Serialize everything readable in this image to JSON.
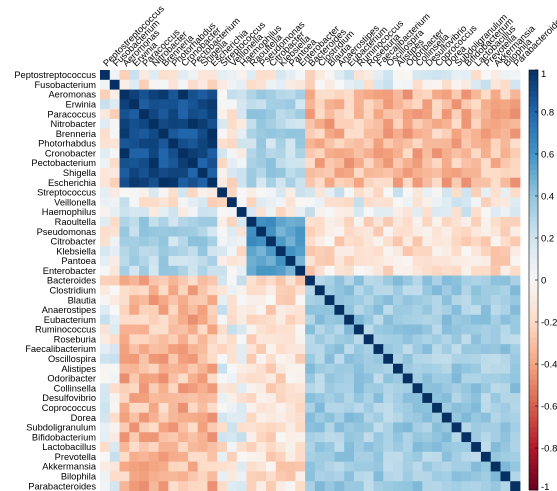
{
  "chart_data": {
    "type": "heatmap",
    "title": "",
    "labels": [
      "Peptostreptococcus",
      "Fusobacterium",
      "Aeromonas",
      "Erwinia",
      "Paracoccus",
      "Nitrobacter",
      "Brenneria",
      "Photorhabdus",
      "Cronobacter",
      "Pectobacterium",
      "Shigella",
      "Escherichia",
      "Streptococcus",
      "Veillonella",
      "Haemophilus",
      "Raoultella",
      "Pseudomonas",
      "Citrobacter",
      "Klebsiella",
      "Pantoea",
      "Enterobacter",
      "Bacteroides",
      "Clostridium",
      "Blautia",
      "Anaerostipes",
      "Eubacterium",
      "Ruminococcus",
      "Roseburia",
      "Faecalibacterium",
      "Oscillospira",
      "Alistipes",
      "Odoribacter",
      "Collinsella",
      "Desulfovibrio",
      "Coprococcus",
      "Dorea",
      "Subdoligranulum",
      "Bifidobacterium",
      "Lactobacillus",
      "Prevotella",
      "Akkermansia",
      "Bilophila",
      "Parabacteroides"
    ],
    "groups": [
      {
        "start": 2,
        "end": 11,
        "within": 0.9
      },
      {
        "start": 15,
        "end": 20,
        "within": 0.55
      },
      {
        "start": 21,
        "end": 42,
        "within": 0.35
      }
    ],
    "colorscale": {
      "min": -1,
      "max": 1,
      "ticks": [
        1,
        0.8,
        0.6,
        0.4,
        0.2,
        0,
        -0.2,
        -0.4,
        -0.6,
        -0.8,
        -1
      ]
    },
    "colors": {
      "positive": "#053061",
      "zero": "#f7f7f7",
      "negative": "#67001f"
    }
  }
}
